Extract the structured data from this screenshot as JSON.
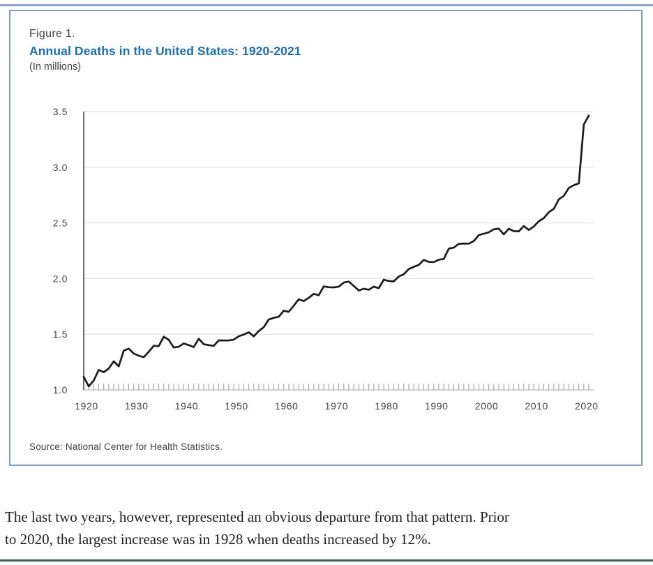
{
  "figure": {
    "label": "Figure 1.",
    "title": "Annual Deaths in the United States: 1920-2021",
    "subtitle": "(In millions)",
    "source": "Source: National Center for Health Statistics."
  },
  "paragraph": {
    "lines": [
      "The last two years, however, represented an obvious departure from that pattern. Prior",
      "to 2020, the largest increase was in 1928 when deaths increased by 12%."
    ]
  },
  "colors": {
    "title_blue": "#1a70b8",
    "box_border": "#7e9dc8",
    "top_rule": "#8aa5c9",
    "bottom_rule": "#3f5d4e",
    "series_line": "#1b1b1b",
    "gridline": "#dcdcdc",
    "y_axis_line": "#4d4d4d",
    "tick": "#999999",
    "baseline": "#a8a8a8",
    "axis_text": "#454545"
  },
  "chart_data": {
    "type": "line",
    "title": "Annual Deaths in the United States: 1920-2021",
    "units": "millions",
    "xlabel": "",
    "ylabel": "(In millions)",
    "x_start": 1920,
    "x_end": 2021,
    "ylim": [
      1.0,
      3.5
    ],
    "yticks": [
      "1.0",
      "1.5",
      "2.0",
      "2.5",
      "3.0",
      "3.5"
    ],
    "xticks": [
      1920,
      1930,
      1940,
      1950,
      1960,
      1970,
      1980,
      1990,
      2000,
      2010,
      2020
    ],
    "grid": "horizontal",
    "legend": "none",
    "values": [
      1.118,
      1.032,
      1.084,
      1.179,
      1.159,
      1.192,
      1.257,
      1.212,
      1.352,
      1.37,
      1.327,
      1.307,
      1.294,
      1.342,
      1.397,
      1.393,
      1.479,
      1.45,
      1.381,
      1.388,
      1.417,
      1.402,
      1.385,
      1.459,
      1.411,
      1.402,
      1.396,
      1.445,
      1.444,
      1.444,
      1.452,
      1.482,
      1.497,
      1.518,
      1.481,
      1.529,
      1.564,
      1.633,
      1.647,
      1.657,
      1.712,
      1.702,
      1.757,
      1.814,
      1.798,
      1.828,
      1.863,
      1.851,
      1.93,
      1.922,
      1.921,
      1.928,
      1.964,
      1.973,
      1.934,
      1.893,
      1.909,
      1.9,
      1.928,
      1.914,
      1.99,
      1.978,
      1.975,
      2.019,
      2.039,
      2.086,
      2.105,
      2.123,
      2.168,
      2.15,
      2.148,
      2.17,
      2.176,
      2.269,
      2.279,
      2.312,
      2.315,
      2.314,
      2.337,
      2.391,
      2.403,
      2.416,
      2.443,
      2.448,
      2.397,
      2.448,
      2.426,
      2.424,
      2.472,
      2.437,
      2.468,
      2.515,
      2.543,
      2.597,
      2.626,
      2.712,
      2.744,
      2.814,
      2.839,
      2.855,
      3.384,
      3.464
    ]
  }
}
